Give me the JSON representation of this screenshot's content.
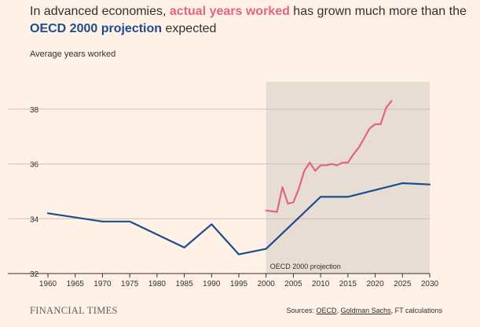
{
  "header": {
    "title_pre": "In advanced economies, ",
    "title_actual": "actual years worked",
    "title_mid": " has grown much more than the ",
    "title_oecd": "OECD 2000 projection",
    "title_post": " expected"
  },
  "footer": {
    "brand": "FINANCIAL TIMES",
    "source_pre": "Sources: ",
    "source_oecd": "OECD",
    "source_sep": ", ",
    "source_gs": "Goldman Sachs",
    "source_post": ", FT calculations"
  },
  "colors": {
    "background": "#fff1e5",
    "shade": "#e8ddd3",
    "grid": "#ccc1b7",
    "actual": "#e0667e",
    "projection": "#1a4d8f"
  },
  "chart_data": {
    "type": "line",
    "title": "In advanced economies, actual years worked has grown much more than the OECD 2000 projection expected",
    "ylabel": "Average years worked",
    "xlabel": "",
    "xlim": [
      1960,
      2030
    ],
    "ylim": [
      32,
      39
    ],
    "x_ticks": [
      1960,
      1965,
      1970,
      1975,
      1980,
      1985,
      1990,
      1995,
      2000,
      2005,
      2010,
      2015,
      2020,
      2025,
      2030
    ],
    "y_ticks": [
      32,
      34,
      36,
      38
    ],
    "grid": true,
    "shaded_region": {
      "x_start": 2000,
      "x_end": 2030,
      "label": "OECD 2000 projection"
    },
    "series": [
      {
        "name": "OECD 2000 projection",
        "x": [
          1960,
          1970,
          1975,
          1985,
          1990,
          1995,
          2000,
          2010,
          2015,
          2025,
          2030
        ],
        "values": [
          34.2,
          33.9,
          33.9,
          32.95,
          33.8,
          32.7,
          32.9,
          34.8,
          34.8,
          35.3,
          35.25
        ]
      },
      {
        "name": "Actual years worked",
        "x": [
          2000,
          2002,
          2003,
          2004,
          2005,
          2006,
          2007,
          2008,
          2009,
          2010,
          2011,
          2012,
          2013,
          2014,
          2015,
          2016,
          2017,
          2018,
          2019,
          2020,
          2021,
          2022,
          2023
        ],
        "values": [
          34.3,
          34.25,
          35.15,
          34.55,
          34.6,
          35.1,
          35.75,
          36.05,
          35.75,
          35.95,
          35.95,
          36.0,
          35.95,
          36.05,
          36.05,
          36.35,
          36.6,
          36.95,
          37.3,
          37.45,
          37.45,
          38.05,
          38.3
        ]
      }
    ]
  }
}
